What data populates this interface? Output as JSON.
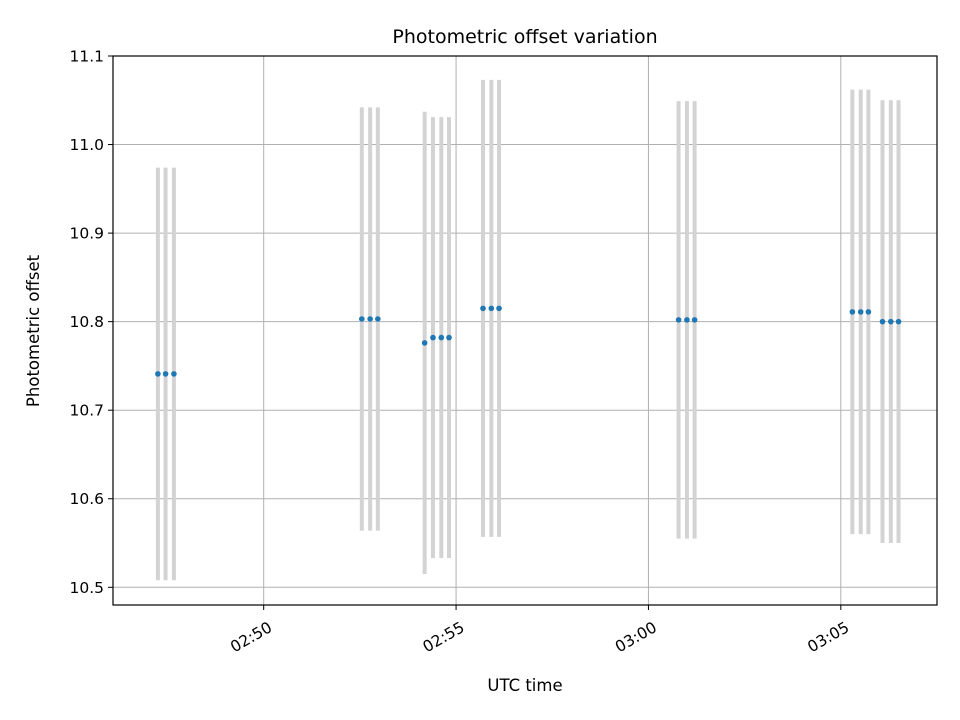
{
  "chart_data": {
    "type": "scatter",
    "title": "Photometric offset variation",
    "xlabel": "UTC time",
    "ylabel": "Photometric offset",
    "grid": true,
    "xlim": [
      "02:46:05",
      "03:07:30"
    ],
    "ylim": [
      10.48,
      11.1
    ],
    "x_ticks": [
      "02:50",
      "02:55",
      "03:00",
      "03:05"
    ],
    "y_ticks": [
      "10.5",
      "10.6",
      "10.7",
      "10.8",
      "10.9",
      "11.0",
      "11.1"
    ],
    "marker_color": "#1f77b4",
    "errorbar_color": "#d3d3d3",
    "points": [
      {
        "t": "02:47:15",
        "y": 10.741,
        "err": 0.233
      },
      {
        "t": "02:47:27",
        "y": 10.741,
        "err": 0.233
      },
      {
        "t": "02:47:40",
        "y": 10.741,
        "err": 0.233
      },
      {
        "t": "02:52:33",
        "y": 10.803,
        "err": 0.239
      },
      {
        "t": "02:52:46",
        "y": 10.803,
        "err": 0.239
      },
      {
        "t": "02:52:58",
        "y": 10.803,
        "err": 0.239
      },
      {
        "t": "02:54:11",
        "y": 10.776,
        "err": 0.261
      },
      {
        "t": "02:54:24",
        "y": 10.782,
        "err": 0.249
      },
      {
        "t": "02:54:37",
        "y": 10.782,
        "err": 0.249
      },
      {
        "t": "02:54:49",
        "y": 10.782,
        "err": 0.249
      },
      {
        "t": "02:55:42",
        "y": 10.815,
        "err": 0.258
      },
      {
        "t": "02:55:55",
        "y": 10.815,
        "err": 0.258
      },
      {
        "t": "02:56:07",
        "y": 10.815,
        "err": 0.258
      },
      {
        "t": "03:00:47",
        "y": 10.802,
        "err": 0.247
      },
      {
        "t": "03:01:00",
        "y": 10.802,
        "err": 0.247
      },
      {
        "t": "03:01:12",
        "y": 10.802,
        "err": 0.247
      },
      {
        "t": "03:05:18",
        "y": 10.811,
        "err": 0.251
      },
      {
        "t": "03:05:31",
        "y": 10.811,
        "err": 0.251
      },
      {
        "t": "03:05:43",
        "y": 10.811,
        "err": 0.251
      },
      {
        "t": "03:06:05",
        "y": 10.8,
        "err": 0.25
      },
      {
        "t": "03:06:18",
        "y": 10.8,
        "err": 0.25
      },
      {
        "t": "03:06:30",
        "y": 10.8,
        "err": 0.25
      }
    ]
  }
}
